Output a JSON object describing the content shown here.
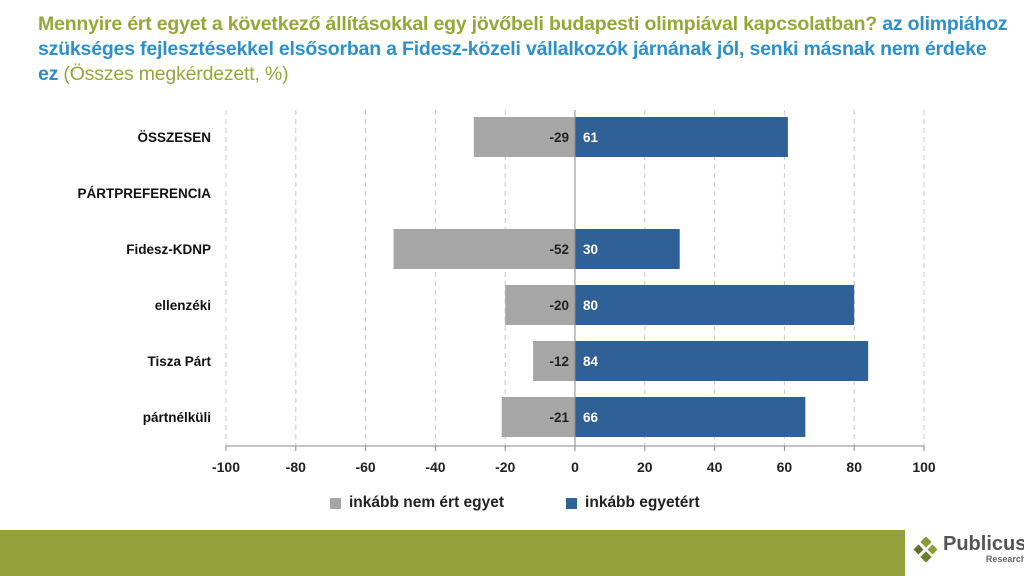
{
  "title": {
    "question": "Mennyire ért egyet a következő állításokkal egy jövőbeli budapesti olimpiával kapcsolatban?",
    "statement": "az olimpiához szükséges fejlesztésekkel elsősorban a Fidesz-közeli vállalkozók járnának jól, senki másnak nem érdeke ez",
    "base": "(Összes megkérdezett, %)"
  },
  "chart_data": {
    "type": "bar",
    "orientation": "horizontal",
    "stacked": "diverging",
    "categories": [
      "ÖSSZESEN",
      "PÁRTPREFERENCIA",
      "Fidesz-KDNP",
      "ellenzéki",
      "Tisza Párt",
      "pártnélküli"
    ],
    "series": [
      {
        "name": "inkább nem ért egyet",
        "color": "#a6a6a6",
        "values": [
          -29,
          null,
          -52,
          -20,
          -12,
          -21
        ]
      },
      {
        "name": "inkább egyetért",
        "color": "#2f6196",
        "values": [
          61,
          null,
          30,
          80,
          84,
          66
        ]
      }
    ],
    "xlim": [
      -100,
      100
    ],
    "xticks": [
      -100,
      -80,
      -60,
      -40,
      -20,
      0,
      20,
      40,
      60,
      80,
      100
    ],
    "grid": "vertical dashed",
    "legend": "bottom"
  },
  "footer": {
    "logo": "Publicus",
    "logo_sub": "Research"
  }
}
